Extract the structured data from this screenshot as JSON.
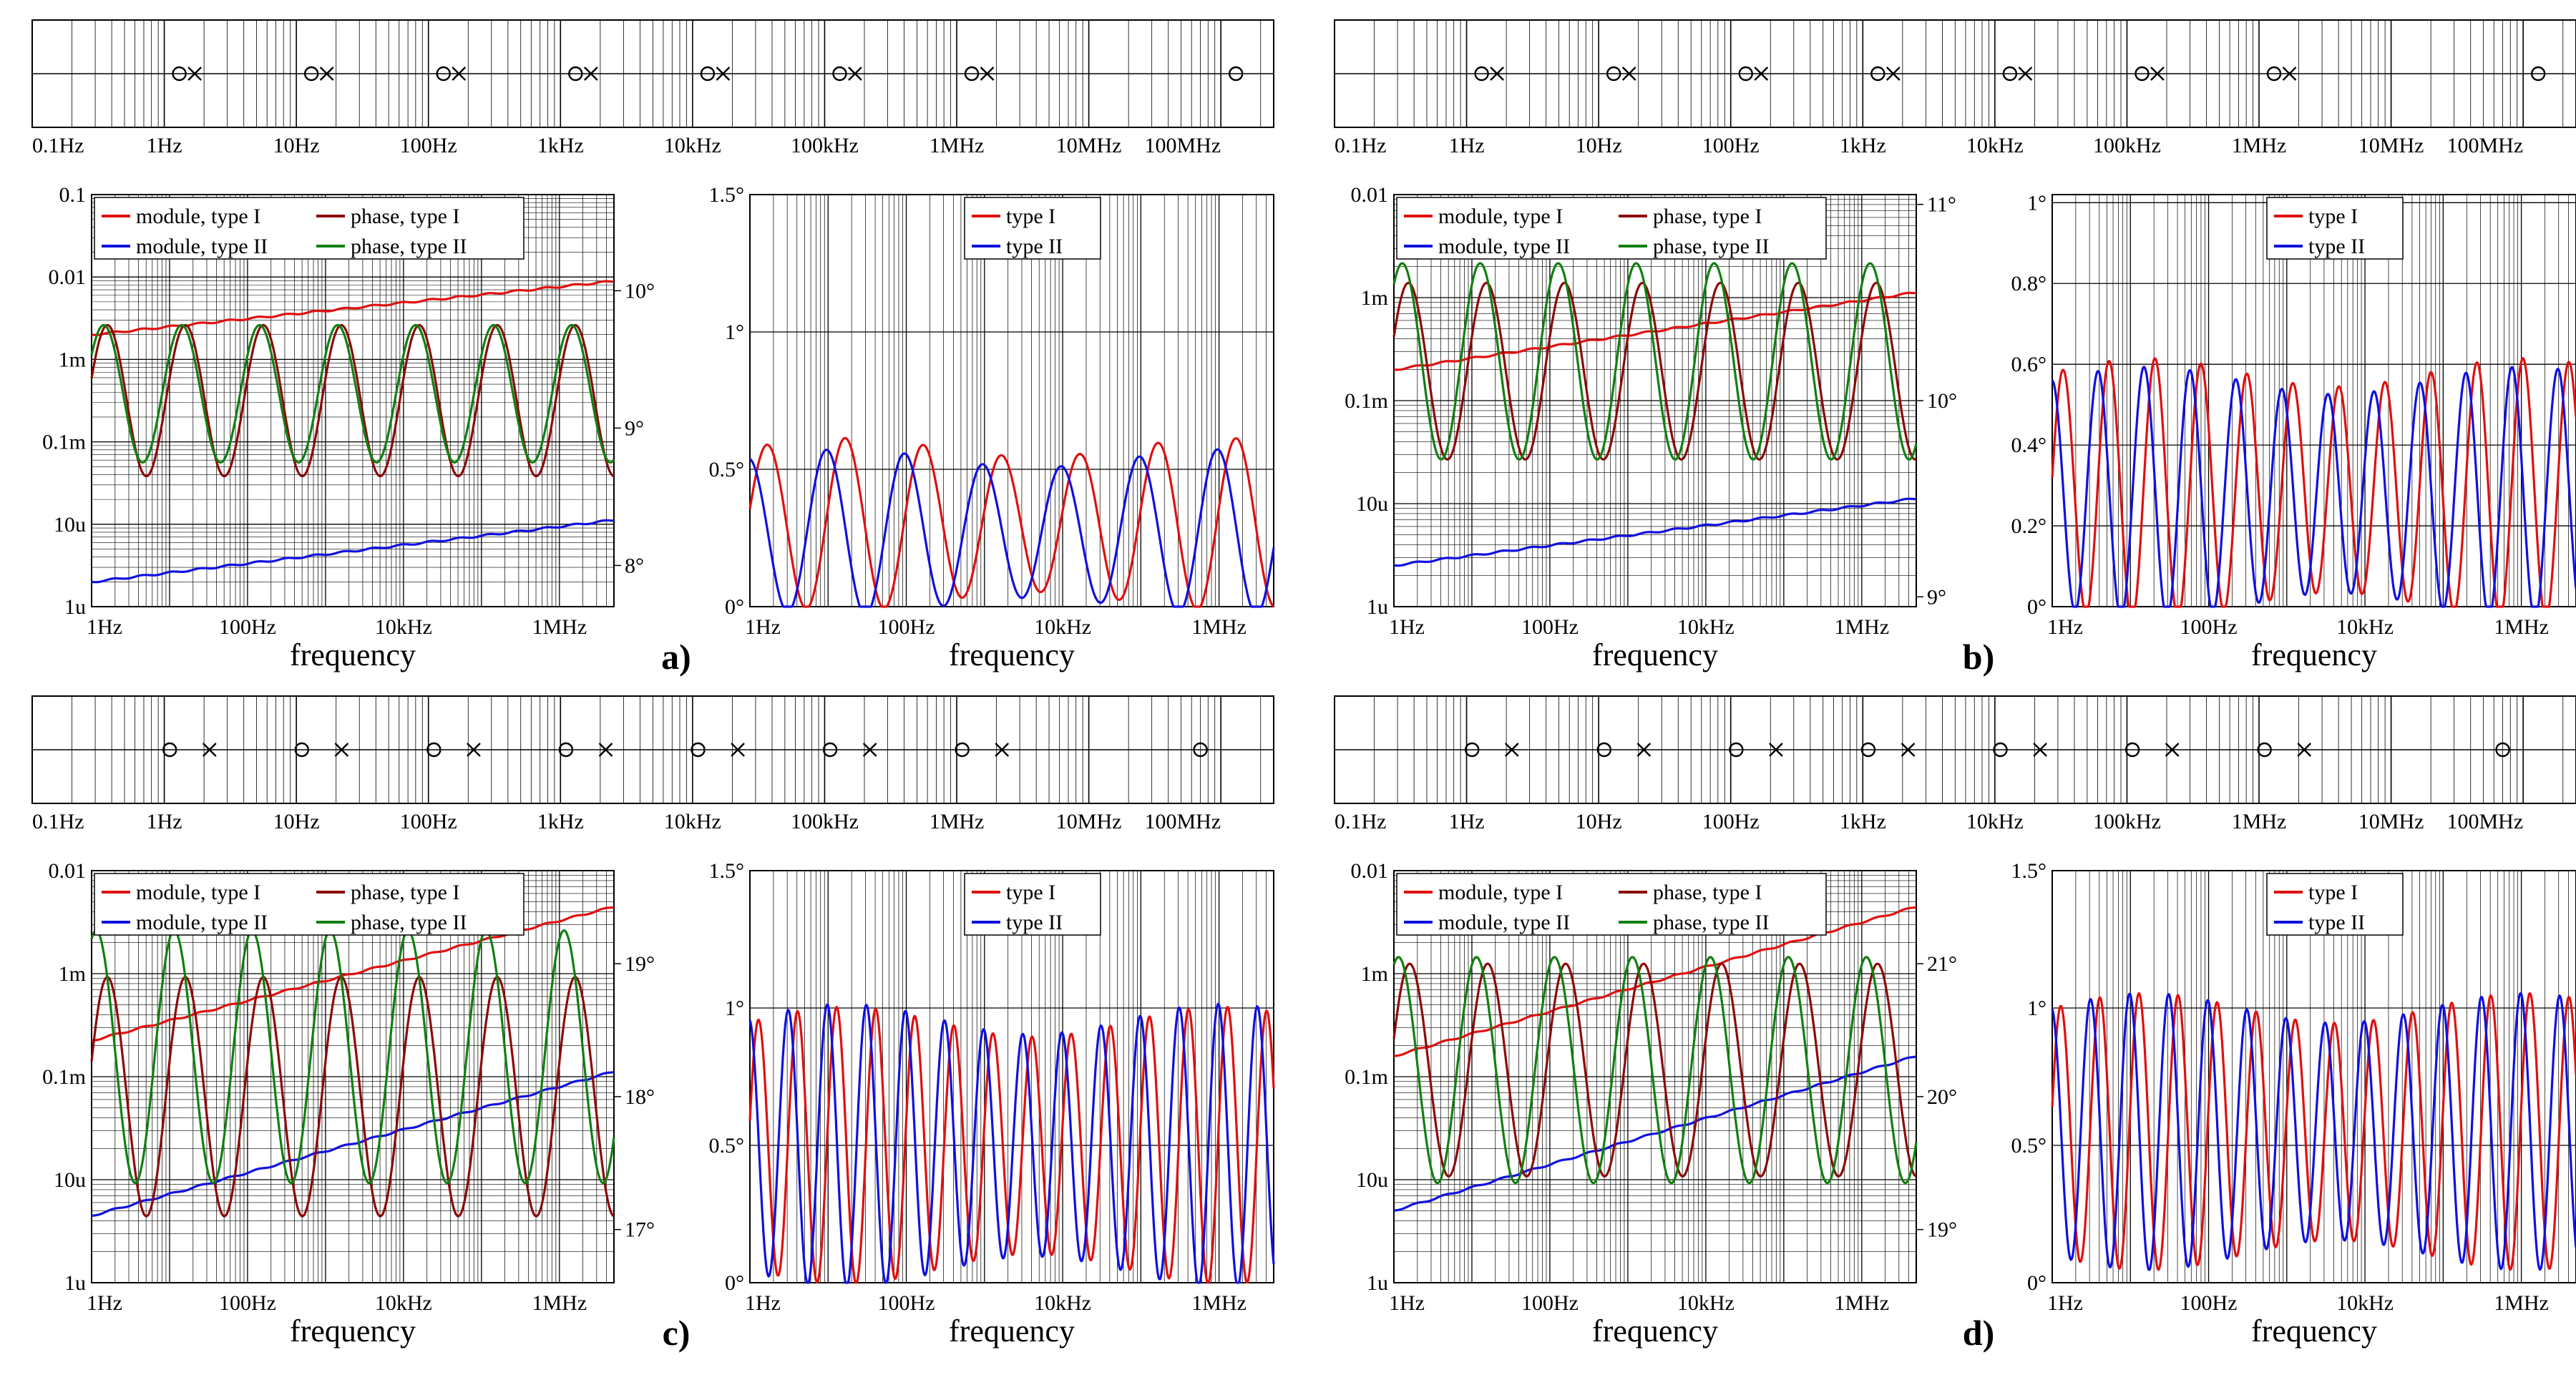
{
  "figure": {
    "panels": [
      {
        "id": "a",
        "caption": "a)",
        "pz_axis": {
          "ticks": [
            "0.1Hz",
            "1Hz",
            "10Hz",
            "100Hz",
            "1kHz",
            "10kHz",
            "100kHz",
            "1MHz",
            "10MHz",
            "100MHz"
          ]
        },
        "pz": {
          "zeros_hz": [
            1.3,
            13,
            130,
            1300,
            13000,
            130000,
            1300000,
            130000000
          ],
          "poles_hz": [
            1.7,
            17,
            170,
            1700,
            17000,
            170000,
            1700000
          ]
        },
        "left_plot": {
          "xlabel": "frequency",
          "x_ticks": [
            "1Hz",
            "100Hz",
            "10kHz",
            "1MHz"
          ],
          "y_left_ticks": [
            "1u",
            "10u",
            "0.1m",
            "1m",
            "0.01",
            "0.1"
          ],
          "y_right_ticks": [
            "8°",
            "9°",
            "10°"
          ],
          "legend": [
            "module, type I",
            "phase, type I",
            "module, type II",
            "phase, type II"
          ]
        },
        "right_plot": {
          "xlabel": "frequency",
          "x_ticks": [
            "1Hz",
            "100Hz",
            "10kHz",
            "1MHz"
          ],
          "y_ticks": [
            "0°",
            "0.5°",
            "1°",
            "1.5°"
          ],
          "legend": [
            "type I",
            "type II"
          ]
        }
      },
      {
        "id": "b",
        "caption": "b)",
        "pz_axis": {
          "ticks": [
            "0.1Hz",
            "1Hz",
            "10Hz",
            "100Hz",
            "1kHz",
            "10kHz",
            "100kHz",
            "1MHz",
            "10MHz",
            "100MHz"
          ]
        },
        "pz": {
          "zeros_hz": [
            1.3,
            13,
            130,
            1300,
            13000,
            130000,
            1300000,
            130000000
          ],
          "poles_hz": [
            1.7,
            17,
            170,
            1700,
            17000,
            170000,
            1700000
          ]
        },
        "left_plot": {
          "xlabel": "frequency",
          "x_ticks": [
            "1Hz",
            "100Hz",
            "10kHz",
            "1MHz"
          ],
          "y_left_ticks": [
            "1u",
            "10u",
            "0.1m",
            "1m",
            "0.01"
          ],
          "y_right_ticks": [
            "9°",
            "10°",
            "11°"
          ],
          "legend": [
            "module, type I",
            "phase, type I",
            "module, type II",
            "phase, type II"
          ]
        },
        "right_plot": {
          "xlabel": "frequency",
          "x_ticks": [
            "1Hz",
            "100Hz",
            "10kHz",
            "1MHz"
          ],
          "y_ticks": [
            "0°",
            "0.2°",
            "0.4°",
            "0.6°",
            "0.8°",
            "1°"
          ],
          "legend": [
            "type I",
            "type II"
          ]
        }
      },
      {
        "id": "c",
        "caption": "c)",
        "pz_axis": {
          "ticks": [
            "0.1Hz",
            "1Hz",
            "10Hz",
            "100Hz",
            "1kHz",
            "10kHz",
            "100kHz",
            "1MHz",
            "10MHz",
            "100MHz"
          ]
        },
        "pz": {
          "zeros_hz": [
            1.1,
            11,
            110,
            1100,
            11000,
            110000,
            1100000,
            70000000
          ],
          "poles_hz": [
            2.2,
            22,
            220,
            2200,
            22000,
            220000,
            2200000
          ]
        },
        "left_plot": {
          "xlabel": "frequency",
          "x_ticks": [
            "1Hz",
            "100Hz",
            "10kHz",
            "1MHz"
          ],
          "y_left_ticks": [
            "1u",
            "10u",
            "0.1m",
            "1m",
            "0.01"
          ],
          "y_right_ticks": [
            "17°",
            "18°",
            "19°"
          ],
          "legend": [
            "module, type I",
            "phase, type I",
            "module, type II",
            "phase, type II"
          ]
        },
        "right_plot": {
          "xlabel": "frequency",
          "x_ticks": [
            "1Hz",
            "100Hz",
            "10kHz",
            "1MHz"
          ],
          "y_ticks": [
            "0°",
            "0.5°",
            "1°",
            "1.5°"
          ],
          "legend": [
            "type I",
            "type II"
          ]
        }
      },
      {
        "id": "d",
        "caption": "d)",
        "pz_axis": {
          "ticks": [
            "0.1Hz",
            "1Hz",
            "10Hz",
            "100Hz",
            "1kHz",
            "10kHz",
            "100kHz",
            "1MHz",
            "10MHz",
            "100MHz"
          ]
        },
        "pz": {
          "zeros_hz": [
            1.1,
            11,
            110,
            1100,
            11000,
            110000,
            1100000,
            70000000
          ],
          "poles_hz": [
            2.2,
            22,
            220,
            2200,
            22000,
            220000,
            2200000
          ]
        },
        "left_plot": {
          "xlabel": "frequency",
          "x_ticks": [
            "1Hz",
            "100Hz",
            "10kHz",
            "1MHz"
          ],
          "y_left_ticks": [
            "1u",
            "10u",
            "0.1m",
            "1m",
            "0.01"
          ],
          "y_right_ticks": [
            "19°",
            "20°",
            "21°"
          ],
          "legend": [
            "module, type I",
            "phase, type I",
            "module, type II",
            "phase, type II"
          ]
        },
        "right_plot": {
          "xlabel": "frequency",
          "x_ticks": [
            "1Hz",
            "100Hz",
            "10kHz",
            "1MHz"
          ],
          "y_ticks": [
            "0°",
            "0.5°",
            "1°",
            "1.5°"
          ],
          "legend": [
            "type I",
            "type II"
          ]
        }
      }
    ]
  },
  "chart_data": [
    {
      "type": "line",
      "panel": "a-left",
      "title": "",
      "xlabel": "frequency",
      "x_range_hz": [
        1,
        5000000
      ],
      "ylim_left": [
        1e-06,
        0.1
      ],
      "ylim_right_deg": [
        7.7,
        10.7
      ],
      "series": [
        {
          "name": "module, type I",
          "color": "#e01010",
          "kind": "module",
          "log10_start": -2.7,
          "log10_end": -2.05
        },
        {
          "name": "module, type II",
          "color": "#1010e0",
          "kind": "module",
          "log10_start": -5.7,
          "log10_end": -4.95
        },
        {
          "name": "phase, type I",
          "color": "#8b0a0a",
          "kind": "phase",
          "center_deg": 9.2,
          "amplitude_deg": 0.55,
          "cycles_per_decade": 1.0,
          "phase_shift": 0.3
        },
        {
          "name": "phase, type II",
          "color": "#108010",
          "kind": "phase",
          "center_deg": 9.25,
          "amplitude_deg": 0.5,
          "cycles_per_decade": 1.0,
          "phase_shift": 0.6
        }
      ]
    },
    {
      "type": "line",
      "panel": "a-right",
      "xlabel": "frequency",
      "x_range_hz": [
        1,
        5000000
      ],
      "ylim_deg": [
        0,
        1.5
      ],
      "series": [
        {
          "name": "type I",
          "color": "#e01010",
          "center_deg": 0.3,
          "amplitude_deg": 0.28,
          "cycles_per_decade": 1.0,
          "phase_shift": 0.2
        },
        {
          "name": "type II",
          "color": "#1010e0",
          "center_deg": 0.27,
          "amplitude_deg": 0.27,
          "cycles_per_decade": 1.0,
          "phase_shift": 1.7
        }
      ]
    },
    {
      "type": "line",
      "panel": "b-left",
      "xlabel": "frequency",
      "x_range_hz": [
        1,
        5000000
      ],
      "ylim_left": [
        1e-06,
        0.01
      ],
      "ylim_right_deg": [
        8.95,
        11.05
      ],
      "series": [
        {
          "name": "module, type I",
          "color": "#e01010",
          "kind": "module",
          "log10_start": -3.7,
          "log10_end": -2.95
        },
        {
          "name": "module, type II",
          "color": "#1010e0",
          "kind": "module",
          "log10_start": -5.6,
          "log10_end": -4.95
        },
        {
          "name": "phase, type I",
          "color": "#8b0a0a",
          "kind": "phase",
          "center_deg": 10.15,
          "amplitude_deg": 0.45,
          "cycles_per_decade": 1.0,
          "phase_shift": 0.4
        },
        {
          "name": "phase, type II",
          "color": "#108010",
          "kind": "phase",
          "center_deg": 10.2,
          "amplitude_deg": 0.5,
          "cycles_per_decade": 1.0,
          "phase_shift": 0.9
        }
      ]
    },
    {
      "type": "line",
      "panel": "b-right",
      "xlabel": "frequency",
      "x_range_hz": [
        1,
        5000000
      ],
      "ylim_deg": [
        0,
        1.02
      ],
      "series": [
        {
          "name": "type I",
          "color": "#e01010",
          "center_deg": 0.29,
          "amplitude_deg": 0.29,
          "cycles_per_decade": 1.7,
          "phase_shift": 0.1
        },
        {
          "name": "type II",
          "color": "#1010e0",
          "center_deg": 0.28,
          "amplitude_deg": 0.28,
          "cycles_per_decade": 1.7,
          "phase_shift": 1.6
        }
      ]
    },
    {
      "type": "line",
      "panel": "c-left",
      "xlabel": "frequency",
      "x_range_hz": [
        1,
        5000000
      ],
      "ylim_left": [
        1e-06,
        0.01
      ],
      "ylim_right_deg": [
        16.6,
        19.7
      ],
      "series": [
        {
          "name": "module, type I",
          "color": "#e01010",
          "kind": "module",
          "log10_start": -3.65,
          "log10_end": -2.35
        },
        {
          "name": "module, type II",
          "color": "#1010e0",
          "kind": "module",
          "log10_start": -5.35,
          "log10_end": -3.95
        },
        {
          "name": "phase, type I",
          "color": "#8b0a0a",
          "kind": "phase",
          "center_deg": 18.0,
          "amplitude_deg": 0.9,
          "cycles_per_decade": 1.0,
          "phase_shift": 0.3
        },
        {
          "name": "phase, type II",
          "color": "#108010",
          "kind": "phase",
          "center_deg": 18.3,
          "amplitude_deg": 0.95,
          "cycles_per_decade": 1.0,
          "phase_shift": 1.2
        }
      ]
    },
    {
      "type": "line",
      "panel": "c-right",
      "xlabel": "frequency",
      "x_range_hz": [
        1,
        5000000
      ],
      "ylim_deg": [
        0,
        1.5
      ],
      "series": [
        {
          "name": "type I",
          "color": "#e01010",
          "center_deg": 0.5,
          "amplitude_deg": 0.45,
          "cycles_per_decade": 2.0,
          "phase_shift": 0.2
        },
        {
          "name": "type II",
          "color": "#1010e0",
          "center_deg": 0.5,
          "amplitude_deg": 0.46,
          "cycles_per_decade": 2.0,
          "phase_shift": 1.7
        }
      ]
    },
    {
      "type": "line",
      "panel": "d-left",
      "xlabel": "frequency",
      "x_range_hz": [
        1,
        5000000
      ],
      "ylim_left": [
        1e-06,
        0.01
      ],
      "ylim_right_deg": [
        18.6,
        21.7
      ],
      "series": [
        {
          "name": "module, type I",
          "color": "#e01010",
          "kind": "module",
          "log10_start": -3.8,
          "log10_end": -2.35
        },
        {
          "name": "module, type II",
          "color": "#1010e0",
          "kind": "module",
          "log10_start": -5.3,
          "log10_end": -3.8
        },
        {
          "name": "phase, type I",
          "color": "#8b0a0a",
          "kind": "phase",
          "center_deg": 20.2,
          "amplitude_deg": 0.8,
          "cycles_per_decade": 1.0,
          "phase_shift": 0.3
        },
        {
          "name": "phase, type II",
          "color": "#108010",
          "kind": "phase",
          "center_deg": 20.2,
          "amplitude_deg": 0.85,
          "cycles_per_decade": 1.0,
          "phase_shift": 1.2
        }
      ]
    },
    {
      "type": "line",
      "panel": "d-right",
      "xlabel": "frequency",
      "x_range_hz": [
        1,
        5000000
      ],
      "ylim_deg": [
        0,
        1.5
      ],
      "series": [
        {
          "name": "type I",
          "color": "#e01010",
          "center_deg": 0.55,
          "amplitude_deg": 0.45,
          "cycles_per_decade": 2.0,
          "phase_shift": 0.2
        },
        {
          "name": "type II",
          "color": "#1010e0",
          "center_deg": 0.55,
          "amplitude_deg": 0.45,
          "cycles_per_decade": 2.0,
          "phase_shift": 1.7
        }
      ]
    }
  ]
}
